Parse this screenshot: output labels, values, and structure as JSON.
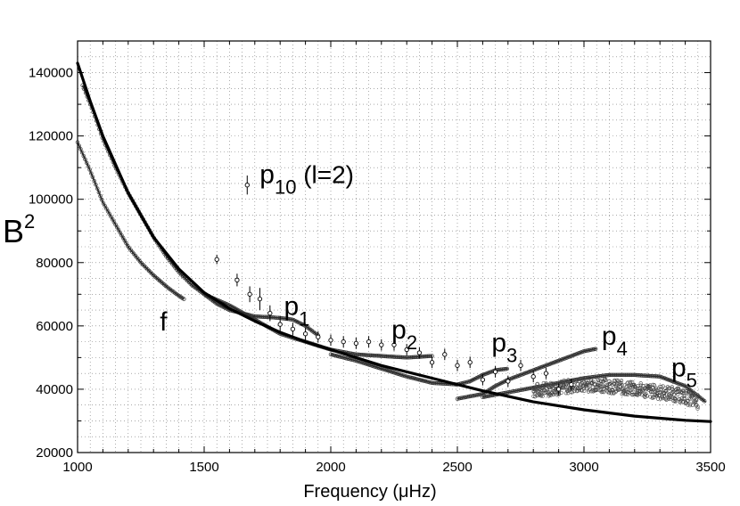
{
  "chart_data": {
    "type": "scatter",
    "title": "",
    "xlabel": "Frequency (μHz)",
    "ylabel_base": "B",
    "ylabel_sup": "2",
    "xlim": [
      1000,
      3500
    ],
    "ylim": [
      20000,
      150000
    ],
    "xticks": [
      1000,
      1500,
      2000,
      2500,
      3000,
      3500
    ],
    "yticks": [
      20000,
      40000,
      60000,
      80000,
      100000,
      120000,
      140000
    ],
    "xtick_labels": [
      "1000",
      "1500",
      "2000",
      "2500",
      "3000",
      "3500"
    ],
    "ytick_labels": [
      "20000",
      "40000",
      "60000",
      "80000",
      "100000",
      "120000",
      "140000"
    ],
    "grid": true,
    "legend_entry": {
      "label_main": "p",
      "label_sub": "10",
      "label_rest": " (l=2)",
      "x": 1670,
      "y": 104500,
      "err": 3000
    },
    "model_curve": {
      "name": "model",
      "x": [
        1000,
        1050,
        1100,
        1150,
        1200,
        1300,
        1400,
        1500,
        1600,
        1700,
        1800,
        1900,
        2000,
        2200,
        2400,
        2600,
        2800,
        3000,
        3200,
        3400,
        3500
      ],
      "y": [
        143000,
        131000,
        120000,
        111000,
        102000,
        88000,
        78000,
        70500,
        65500,
        61500,
        58000,
        55000,
        52500,
        47500,
        43500,
        39500,
        36000,
        33500,
        31500,
        30200,
        29800
      ]
    },
    "ridges": [
      {
        "name": "f",
        "label_main": "f",
        "label_sub": "",
        "label_x": 1325,
        "label_y": 58500,
        "x": [
          1000,
          1050,
          1100,
          1150,
          1200,
          1250,
          1300,
          1350,
          1400,
          1420
        ],
        "y": [
          118000,
          109000,
          99000,
          92000,
          85000,
          80000,
          76000,
          72500,
          69500,
          68500
        ]
      },
      {
        "name": "p1",
        "label_main": "p",
        "label_sub": "1",
        "label_x": 1815,
        "label_y": 63500,
        "x": [
          1020,
          1060,
          1100,
          1150,
          1200,
          1250,
          1300,
          1350,
          1400,
          1450,
          1500,
          1550,
          1600,
          1650,
          1700,
          1750,
          1800,
          1850,
          1900,
          1950
        ],
        "y": [
          136000,
          128000,
          119000,
          110000,
          102000,
          95000,
          88000,
          82000,
          77000,
          73000,
          70000,
          67000,
          65000,
          64000,
          63000,
          62800,
          62500,
          62000,
          60000,
          57000
        ]
      },
      {
        "name": "p2",
        "label_main": "p",
        "label_sub": "2",
        "label_x": 2240,
        "label_y": 56000,
        "x": [
          1500,
          1600,
          1700,
          1800,
          1900,
          2000,
          2100,
          2200,
          2300,
          2400
        ],
        "y": [
          70000,
          66500,
          62000,
          57500,
          55000,
          52500,
          51000,
          50500,
          50000,
          50500
        ]
      },
      {
        "name": "p3",
        "label_main": "p",
        "label_sub": "3",
        "label_x": 2635,
        "label_y": 52000,
        "x": [
          2000,
          2100,
          2200,
          2300,
          2400,
          2500,
          2550,
          2600,
          2650,
          2700
        ],
        "y": [
          51000,
          49000,
          46500,
          44000,
          42000,
          41500,
          42500,
          44500,
          46000,
          46500
        ]
      },
      {
        "name": "p4",
        "label_main": "p",
        "label_sub": "4",
        "label_x": 3070,
        "label_y": 54000,
        "x": [
          2500,
          2600,
          2650,
          2700,
          2750,
          2800,
          2850,
          2900,
          2950,
          3000,
          3050
        ],
        "y": [
          37000,
          38500,
          41000,
          43000,
          44500,
          46000,
          47500,
          49000,
          50500,
          52000,
          52800
        ]
      },
      {
        "name": "p5",
        "label_main": "p",
        "label_sub": "5",
        "label_x": 3345,
        "label_y": 44000,
        "x": [
          2600,
          2700,
          2800,
          2900,
          3000,
          3100,
          3200,
          3300,
          3400,
          3480
        ],
        "y": [
          37500,
          39000,
          40500,
          42000,
          43500,
          44500,
          44500,
          44000,
          41000,
          36000
        ]
      }
    ],
    "scatter_bands": [
      {
        "name": "scatter-2800-3450",
        "x": [
          2800,
          2850,
          2900,
          2950,
          3000,
          3050,
          3100,
          3150,
          3200,
          3250,
          3300,
          3350,
          3400,
          3450
        ],
        "y_mid": [
          39500,
          40000,
          40500,
          41000,
          41500,
          41500,
          41000,
          40500,
          40000,
          39500,
          39000,
          38500,
          37500,
          36000
        ],
        "spread": 4500
      }
    ],
    "errorbar_points": [
      {
        "x": 1550,
        "y": 81000,
        "err": 1500
      },
      {
        "x": 1630,
        "y": 74500,
        "err": 2000
      },
      {
        "x": 1680,
        "y": 70000,
        "err": 2500
      },
      {
        "x": 1720,
        "y": 68500,
        "err": 3500
      },
      {
        "x": 1760,
        "y": 64000,
        "err": 2500
      },
      {
        "x": 1800,
        "y": 60500,
        "err": 2500
      },
      {
        "x": 1850,
        "y": 59000,
        "err": 2000
      },
      {
        "x": 1900,
        "y": 57500,
        "err": 2000
      },
      {
        "x": 1950,
        "y": 56500,
        "err": 1800
      },
      {
        "x": 2000,
        "y": 55500,
        "err": 1800
      },
      {
        "x": 2050,
        "y": 55000,
        "err": 1800
      },
      {
        "x": 2100,
        "y": 54500,
        "err": 1800
      },
      {
        "x": 2150,
        "y": 55000,
        "err": 1800
      },
      {
        "x": 2200,
        "y": 54000,
        "err": 1800
      },
      {
        "x": 2250,
        "y": 54000,
        "err": 1800
      },
      {
        "x": 2300,
        "y": 52500,
        "err": 1800
      },
      {
        "x": 2350,
        "y": 51500,
        "err": 1800
      },
      {
        "x": 2400,
        "y": 48500,
        "err": 1800
      },
      {
        "x": 2450,
        "y": 51000,
        "err": 1800
      },
      {
        "x": 2500,
        "y": 47500,
        "err": 1800
      },
      {
        "x": 2550,
        "y": 48500,
        "err": 1800
      },
      {
        "x": 2600,
        "y": 43000,
        "err": 1800
      },
      {
        "x": 2650,
        "y": 45500,
        "err": 1800
      },
      {
        "x": 2700,
        "y": 42500,
        "err": 1800
      },
      {
        "x": 2750,
        "y": 47500,
        "err": 1800
      },
      {
        "x": 2800,
        "y": 44000,
        "err": 1800
      },
      {
        "x": 2850,
        "y": 45000,
        "err": 1800
      },
      {
        "x": 2900,
        "y": 40000,
        "err": 1800
      },
      {
        "x": 2950,
        "y": 41500,
        "err": 1800
      }
    ]
  }
}
